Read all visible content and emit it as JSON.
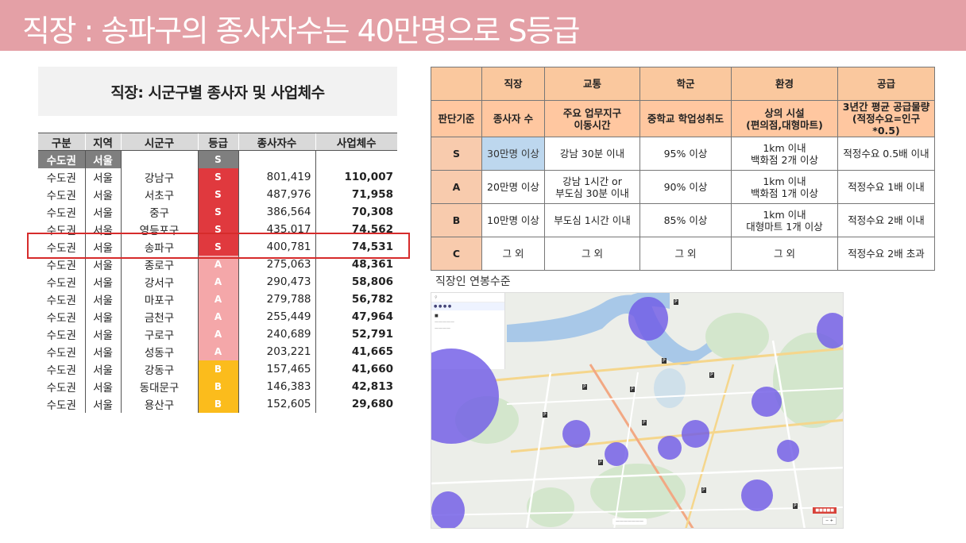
{
  "header": {
    "title": "직장 : 송파구의 종사자수는 40만명으로 S등급"
  },
  "employment_table": {
    "title": "직장: 시군구별 종사자 및 사업체수",
    "columns": [
      "구분",
      "지역",
      "시군구",
      "등급",
      "종사자수",
      "사업체수"
    ],
    "region_row": {
      "category": "수도권",
      "area": "서울",
      "grade": "S"
    },
    "rows": [
      {
        "category": "수도권",
        "area": "서울",
        "district": "강남구",
        "grade": "S",
        "employees": "801,419",
        "businesses": "110,007"
      },
      {
        "category": "수도권",
        "area": "서울",
        "district": "서초구",
        "grade": "S",
        "employees": "487,976",
        "businesses": "71,958"
      },
      {
        "category": "수도권",
        "area": "서울",
        "district": "중구",
        "grade": "S",
        "employees": "386,564",
        "businesses": "70,308"
      },
      {
        "category": "수도권",
        "area": "서울",
        "district": "영등포구",
        "grade": "S",
        "employees": "435,017",
        "businesses": "74,562"
      },
      {
        "category": "수도권",
        "area": "서울",
        "district": "송파구",
        "grade": "S",
        "employees": "400,781",
        "businesses": "74,531"
      },
      {
        "category": "수도권",
        "area": "서울",
        "district": "종로구",
        "grade": "A",
        "employees": "275,063",
        "businesses": "48,361"
      },
      {
        "category": "수도권",
        "area": "서울",
        "district": "강서구",
        "grade": "A",
        "employees": "290,473",
        "businesses": "58,806"
      },
      {
        "category": "수도권",
        "area": "서울",
        "district": "마포구",
        "grade": "A",
        "employees": "279,788",
        "businesses": "56,782"
      },
      {
        "category": "수도권",
        "area": "서울",
        "district": "금천구",
        "grade": "A",
        "employees": "255,449",
        "businesses": "47,964"
      },
      {
        "category": "수도권",
        "area": "서울",
        "district": "구로구",
        "grade": "A",
        "employees": "240,689",
        "businesses": "52,791"
      },
      {
        "category": "수도권",
        "area": "서울",
        "district": "성동구",
        "grade": "A",
        "employees": "203,221",
        "businesses": "41,665"
      },
      {
        "category": "수도권",
        "area": "서울",
        "district": "강동구",
        "grade": "B",
        "employees": "157,465",
        "businesses": "41,660"
      },
      {
        "category": "수도권",
        "area": "서울",
        "district": "동대문구",
        "grade": "B",
        "employees": "146,383",
        "businesses": "42,813"
      },
      {
        "category": "수도권",
        "area": "서울",
        "district": "용산구",
        "grade": "B",
        "employees": "152,605",
        "businesses": "29,680"
      }
    ],
    "grade_colors": {
      "S": "#e0393e",
      "A": "#f4a7a9",
      "B": "#fbbc1c"
    }
  },
  "criteria_table": {
    "headers": [
      "",
      "직장",
      "교통",
      "학군",
      "환경",
      "공급"
    ],
    "sub_headers": [
      "판단기준",
      "종사자 수",
      "주요 업무지구\n이동시간",
      "중학교 학업성취도",
      "상의 시설\n(편의점,대형마트)",
      "3년간 평균 공급물량\n(적정수요=인구*0.5)"
    ],
    "rows": [
      {
        "level": "S",
        "cells": [
          "30만명 이상",
          "강남 30분 이내",
          "95% 이상",
          "1km 이내\n백화점 2개 이상",
          "적정수요 0.5배 이내"
        ]
      },
      {
        "level": "A",
        "cells": [
          "20만명 이상",
          "강남 1시간 or\n부도심 30분 이내",
          "90% 이상",
          "1km 이내\n백화점 1개 이상",
          "적정수요 1배 이내"
        ]
      },
      {
        "level": "B",
        "cells": [
          "10만명 이상",
          "부도심 1시간 이내",
          "85% 이상",
          "1km 이내\n대형마트 1개 이상",
          "적정수요 2배 이내"
        ]
      },
      {
        "level": "C",
        "cells": [
          "그 외",
          "그 외",
          "그 외",
          "그 외",
          "적정수요 2배 초과"
        ]
      }
    ]
  },
  "map": {
    "label": "직장인 연봉수준"
  }
}
